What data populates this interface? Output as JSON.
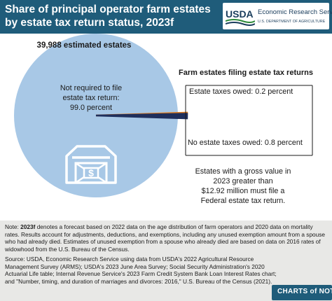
{
  "header": {
    "title": "Share of principal operator farm estates by estate tax return status, 2023f",
    "agency_name": "Economic Research Service",
    "department": "U.S. DEPARTMENT OF AGRICULTURE",
    "usda_mark": "USDA",
    "bg_color": "#1f5c7a"
  },
  "chart_data": {
    "type": "pie",
    "title": "Share of principal operator farm estates by estate tax return status, 2023f",
    "total_label": "39,988 estimated estates",
    "slices": [
      {
        "label": "Not required to file estate tax return:",
        "value_text": "99.0 percent",
        "value": 99.0,
        "color": "#a8c8e6"
      },
      {
        "label": "Estate taxes owed:",
        "value_text": "0.2 percent",
        "value": 0.2,
        "color": "#e07b1c"
      },
      {
        "label": "No estate taxes owed:",
        "value_text": "0.8 percent",
        "value": 0.8,
        "color": "#1f2f5c"
      }
    ],
    "breakout_title": "Farm estates filing estate tax returns",
    "annotation": "Estates with a gross value in 2023 greater than $12.92 million must file a Federal estate tax return."
  },
  "labels": {
    "pie_main_line1": "Not required to file",
    "pie_main_line2": "estate tax return:",
    "pie_main_line3": "99.0 percent",
    "owed": "Estate taxes owed: 0.2 percent",
    "not_owed": "No estate taxes owed: 0.8 percent",
    "gross_line1": "Estates with a gross value in",
    "gross_line2": "2023 greater than",
    "gross_line3": "$12.92 million must file a",
    "gross_line4": "Federal estate tax return."
  },
  "icon": {
    "name": "barn-icon",
    "symbol": "$"
  },
  "notes": {
    "note_label": "Note:",
    "note_f": "2023f",
    "note_text": " denotes a forecast based on 2022 data on the age distribution of farm operators and 2020 data on mortality rates. Results account for adjustments, deductions, and exemptions, including any unused exemption amount from a spouse who had already died. Estimates of unused exemption from a spouse who already died are based on data on 2016 rates of widowhood from the U.S. Bureau of the Census.",
    "source_text": "Source: USDA, Economic Research Service using data from USDA's 2022 Agricultural Resource Management Survey (ARMS); USDA's 2023 June Area Survey; Social Security Administration's 2020 Actuarial Life table; Internal Revenue Service's 2023 Farm Credit System Bank Loan Interest Rates chart; and \"Number, timing, and duration of marriages and divorces: 2016,\" U.S. Bureau of the Census (2021).",
    "bg_color": "#e8e8e6"
  },
  "branding": {
    "charts_of_note": "CHARTS of NOTE"
  }
}
